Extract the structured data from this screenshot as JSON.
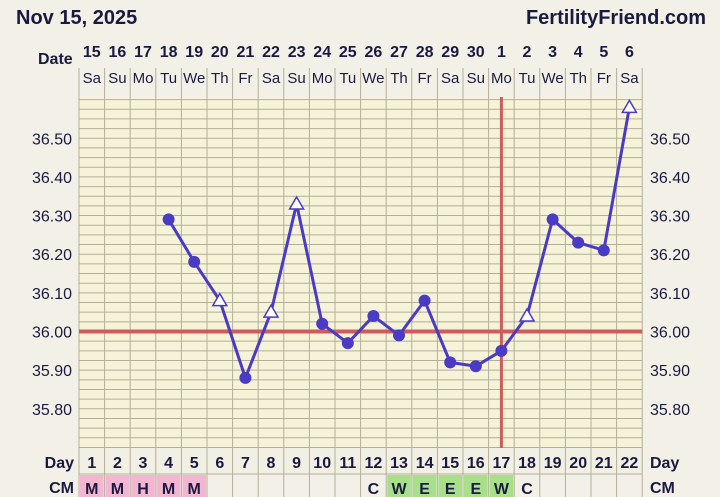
{
  "header": {
    "date": "Nov 15, 2025",
    "brand": "FertilityFriend.com"
  },
  "labels": {
    "date_row": "Date",
    "day_row": "Day",
    "cm_row": "CM"
  },
  "colors": {
    "line": "#4a3bc4",
    "coverline": "#cd5c5c",
    "ovulation_line": "#cd5c5c",
    "grid": "#b3b09a",
    "plot_bg": "#f7f3d8",
    "cm_m_bg": "#f3b6d2",
    "cm_h_bg": "#f3b6d2",
    "cm_w_bg": "#a8e08a",
    "cm_e_bg": "#a8e08a"
  },
  "chart_data": {
    "type": "line",
    "title": "",
    "dates": [
      "15",
      "16",
      "17",
      "18",
      "19",
      "20",
      "21",
      "22",
      "23",
      "24",
      "25",
      "26",
      "27",
      "28",
      "29",
      "30",
      "1",
      "2",
      "3",
      "4",
      "5",
      "6"
    ],
    "weekdays": [
      "Sa",
      "Su",
      "Mo",
      "Tu",
      "We",
      "Th",
      "Fr",
      "Sa",
      "Su",
      "Mo",
      "Tu",
      "We",
      "Th",
      "Fr",
      "Sa",
      "Su",
      "Mo",
      "Tu",
      "We",
      "Th",
      "Fr",
      "Sa"
    ],
    "cycle_days": [
      "1",
      "2",
      "3",
      "4",
      "5",
      "6",
      "7",
      "8",
      "9",
      "10",
      "11",
      "12",
      "13",
      "14",
      "15",
      "16",
      "17",
      "18",
      "19",
      "20",
      "21",
      "22"
    ],
    "series": [
      {
        "values": [
          null,
          null,
          null,
          36.29,
          36.18,
          36.08,
          35.88,
          36.05,
          36.33,
          36.02,
          35.97,
          36.04,
          35.99,
          36.08,
          35.92,
          35.91,
          35.95,
          36.04,
          36.29,
          36.23,
          36.21,
          36.58
        ],
        "marker": [
          "",
          "",
          "",
          "dot",
          "dot",
          "triangle",
          "dot",
          "triangle",
          "triangle",
          "dot",
          "dot",
          "dot",
          "dot",
          "dot",
          "dot",
          "dot",
          "dot",
          "triangle",
          "dot",
          "dot",
          "dot",
          "triangle"
        ]
      }
    ],
    "yticks": [
      "36.50",
      "36.40",
      "36.30",
      "36.20",
      "36.10",
      "36.00",
      "35.90",
      "35.80"
    ],
    "ylim": [
      35.7,
      36.6
    ],
    "coverline": 36.0,
    "ovulation_day": "17",
    "cervical_mucus": [
      "M",
      "M",
      "H",
      "M",
      "M",
      "",
      "",
      "",
      "",
      "",
      "",
      "C",
      "W",
      "E",
      "E",
      "E",
      "W",
      "C",
      "",
      "",
      "",
      ""
    ],
    "grid": true
  }
}
